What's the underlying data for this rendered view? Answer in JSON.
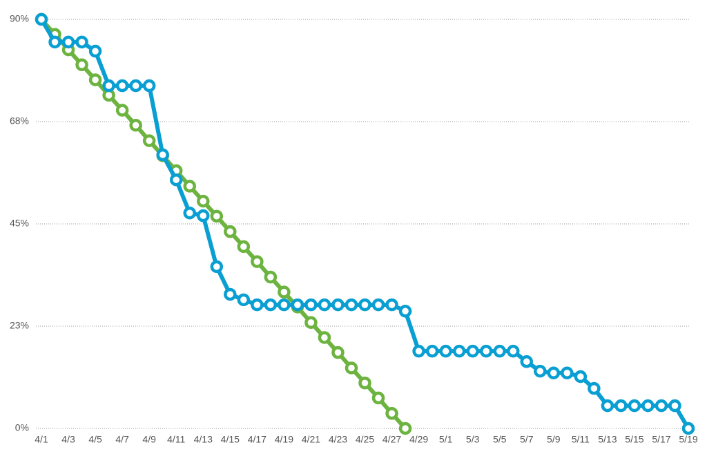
{
  "chart_data": {
    "type": "line",
    "categories": [
      "4/1",
      null,
      "4/3",
      null,
      "4/5",
      null,
      "4/7",
      null,
      "4/9",
      null,
      "4/11",
      null,
      "4/13",
      null,
      "4/15",
      null,
      "4/17",
      null,
      "4/19",
      null,
      "4/21",
      null,
      "4/23",
      null,
      "4/25",
      null,
      "4/27",
      null,
      "4/29",
      null,
      "5/1",
      null,
      "5/3",
      null,
      "5/5",
      null,
      "5/7",
      null,
      "5/9",
      null,
      "5/11",
      null,
      "5/13",
      null,
      "5/15",
      null,
      "5/17",
      null,
      "5/19"
    ],
    "series": [
      {
        "color": "#6cb33f",
        "values": [
          90,
          86.7,
          83.3,
          80,
          76.7,
          73.3,
          70,
          66.7,
          63.3,
          60,
          56.7,
          53.3,
          50,
          46.7,
          43.3,
          40,
          36.7,
          33.3,
          30,
          26.7,
          23.3,
          20,
          16.7,
          13.3,
          10,
          6.7,
          3.3,
          0,
          null,
          null,
          null,
          null,
          null,
          null,
          null,
          null,
          null,
          null,
          null,
          null,
          null,
          null,
          null,
          null,
          null,
          null,
          null,
          null,
          null
        ]
      },
      {
        "color": "#0a9fd3",
        "values": [
          90,
          85,
          85,
          85,
          83,
          75.4,
          75.4,
          75.4,
          75.4,
          60.2,
          54.7,
          47.4,
          46.8,
          35.6,
          29.5,
          28.3,
          27.2,
          27.2,
          27.2,
          27.2,
          27.2,
          27.2,
          27.2,
          27.2,
          27.2,
          27.2,
          27.2,
          25.8,
          17,
          17,
          17,
          17,
          17,
          17,
          17,
          17,
          14.7,
          12.6,
          12.2,
          12.2,
          11.4,
          8.8,
          5,
          5,
          5,
          5,
          5,
          5,
          0
        ]
      }
    ],
    "ylim": [
      0,
      90
    ],
    "yticks": [
      {
        "value": 0,
        "label": "0%"
      },
      {
        "value": 22.5,
        "label": "23%"
      },
      {
        "value": 45,
        "label": "45%"
      },
      {
        "value": 67.5,
        "label": "68%"
      },
      {
        "value": 90,
        "label": "90%"
      }
    ],
    "grid": true
  }
}
